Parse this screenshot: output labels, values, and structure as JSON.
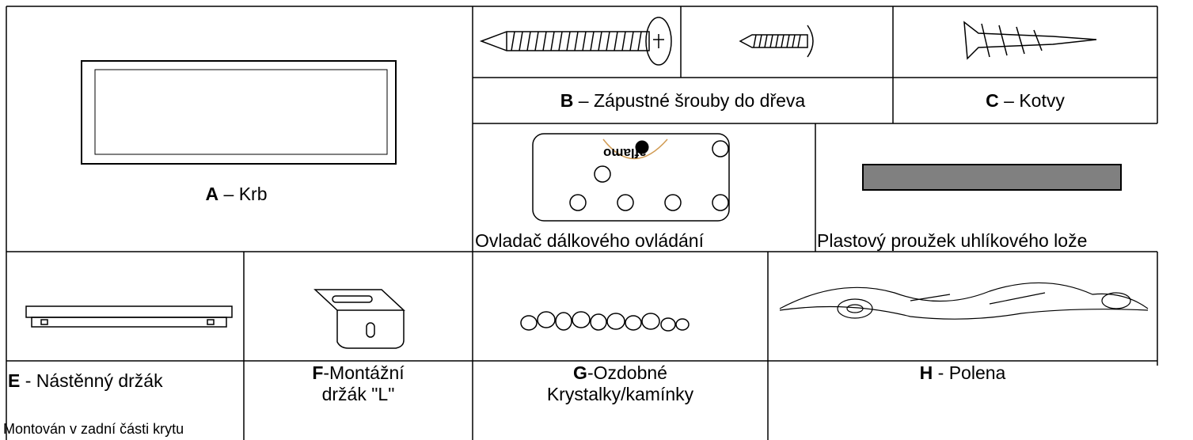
{
  "parts": [
    {
      "letter": "A",
      "text": " – Krb"
    },
    {
      "letter": "B",
      "text": " – Zápustné šrouby do dřeva"
    },
    {
      "letter": "C",
      "text": " – Kotvy"
    },
    {
      "text": "Ovladač dálkového ovládání"
    },
    {
      "text": "Plastový proužek uhlíkového lože"
    },
    {
      "letter": "E",
      "text": " - Nástěnný držák"
    },
    {
      "letter": "F",
      "text": "-Montážní držák \"L\""
    },
    {
      "letter": "G",
      "text": "-Ozdobné Krystalky/kamínky"
    },
    {
      "letter": "H",
      "text": " - Polena"
    }
  ],
  "remote_brand": "aflamo",
  "footnote": "Montován v zadní části krytu"
}
